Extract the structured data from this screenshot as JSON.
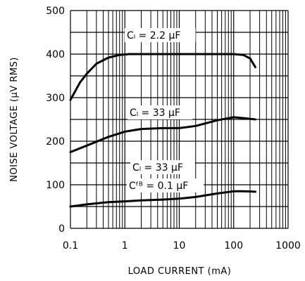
{
  "chart_data": {
    "type": "line",
    "title": "",
    "xlabel": "LOAD CURRENT (mA)",
    "ylabel": "NOISE VOLTAGE (μV RMS)",
    "x_scale": "log",
    "xlim": [
      0.1,
      1000
    ],
    "ylim": [
      0,
      500
    ],
    "grid": true,
    "x_ticks": [
      "0.1",
      "1",
      "10",
      "100",
      "1000"
    ],
    "y_ticks": [
      "0",
      "100",
      "200",
      "300",
      "400",
      "500"
    ],
    "series": [
      {
        "label_lines": [
          "Cₗ = 2.2 μF"
        ],
        "x": [
          0.1,
          0.15,
          0.2,
          0.3,
          0.5,
          0.8,
          1.2,
          2,
          5,
          10,
          20,
          50,
          100,
          150,
          200,
          250
        ],
        "y": [
          295,
          335,
          355,
          378,
          392,
          398,
          400,
          400,
          400,
          400,
          400,
          400,
          400,
          398,
          390,
          370
        ]
      },
      {
        "label_lines": [
          "Cₗ = 33 μF"
        ],
        "x": [
          0.1,
          0.2,
          0.5,
          1,
          2,
          5,
          10,
          20,
          50,
          100,
          150,
          250
        ],
        "y": [
          175,
          190,
          210,
          222,
          228,
          230,
          230,
          235,
          248,
          255,
          253,
          250
        ]
      },
      {
        "label_lines": [
          "Cₗ = 33 μF",
          "Cᶠᴮ = 0.1 μF"
        ],
        "x": [
          0.1,
          0.2,
          0.5,
          1,
          2,
          5,
          10,
          20,
          50,
          100,
          150,
          250
        ],
        "y": [
          50,
          55,
          60,
          62,
          64,
          66,
          68,
          72,
          80,
          85,
          85,
          84
        ]
      }
    ]
  }
}
